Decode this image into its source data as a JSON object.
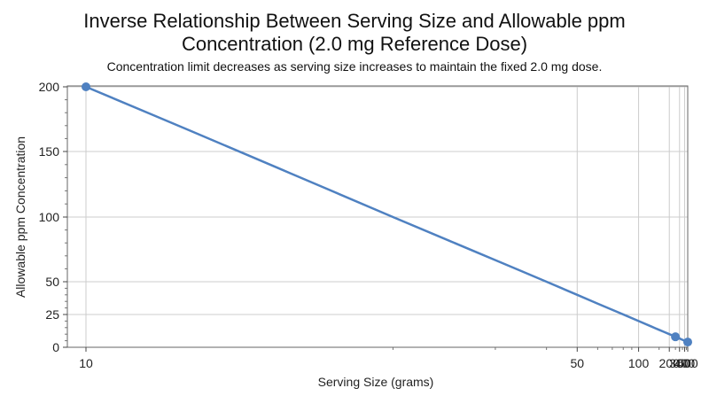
{
  "chart_data": {
    "type": "line",
    "title_line_1": "Inverse Relationship Between Serving Size and Allowable ppm",
    "title_line_2": "Concentration (2.0 mg Reference Dose)",
    "subtitle": "Concentration limit decreases as serving size increases to maintain the fixed 2.0 mg dose.",
    "xlabel": "Serving Size (grams)",
    "ylabel": "Allowable ppm Concentration",
    "x_scale": "reciprocal",
    "xlim": [
      10,
      500
    ],
    "ylim": [
      0,
      200
    ],
    "x_ticks": [
      10,
      50,
      100,
      200,
      300,
      400,
      500
    ],
    "y_ticks": [
      0,
      25,
      50,
      100,
      150,
      200
    ],
    "grid": true,
    "line_color": "#4f81c1",
    "series": [
      {
        "x": [
          10,
          12,
          15,
          20,
          25,
          30,
          40,
          50,
          60,
          75,
          100,
          125,
          150,
          200,
          250,
          300,
          350,
          400,
          450,
          500
        ],
        "values": [
          200,
          166.7,
          133.3,
          100,
          80,
          66.7,
          50,
          40,
          33.3,
          26.7,
          20,
          16,
          13.3,
          10,
          8,
          6.7,
          5.7,
          5,
          4.4,
          4
        ]
      }
    ],
    "markers": [
      {
        "x": 10,
        "y": 200
      },
      {
        "x": 250,
        "y": 8
      },
      {
        "x": 500,
        "y": 4
      }
    ]
  }
}
